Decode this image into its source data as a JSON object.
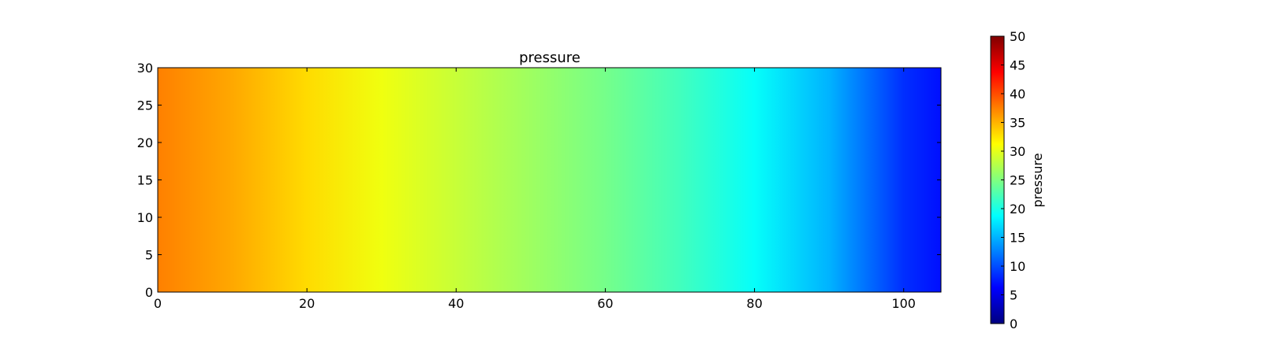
{
  "chart_data": {
    "type": "heatmap",
    "title": "pressure",
    "xlabel": "",
    "ylabel": "",
    "xlim": [
      0,
      105
    ],
    "ylim": [
      0,
      30
    ],
    "x_ticks": [
      0,
      20,
      40,
      60,
      80,
      100
    ],
    "y_ticks": [
      0,
      5,
      10,
      15,
      20,
      25,
      30
    ],
    "colormap": "jet",
    "grid": false,
    "field_varies_along": "x",
    "values_along_x": {
      "x": [
        0,
        10,
        20,
        30,
        40,
        50,
        60,
        70,
        80,
        90,
        100,
        105
      ],
      "pressure": [
        37.5,
        35.5,
        33.0,
        30.5,
        28.5,
        26.5,
        24.5,
        22.0,
        19.0,
        15.0,
        8.5,
        7.0
      ]
    },
    "colorbar": {
      "label": "pressure",
      "range": [
        0,
        50
      ],
      "ticks": [
        0,
        5,
        10,
        15,
        20,
        25,
        30,
        35,
        40,
        45,
        50
      ]
    }
  }
}
